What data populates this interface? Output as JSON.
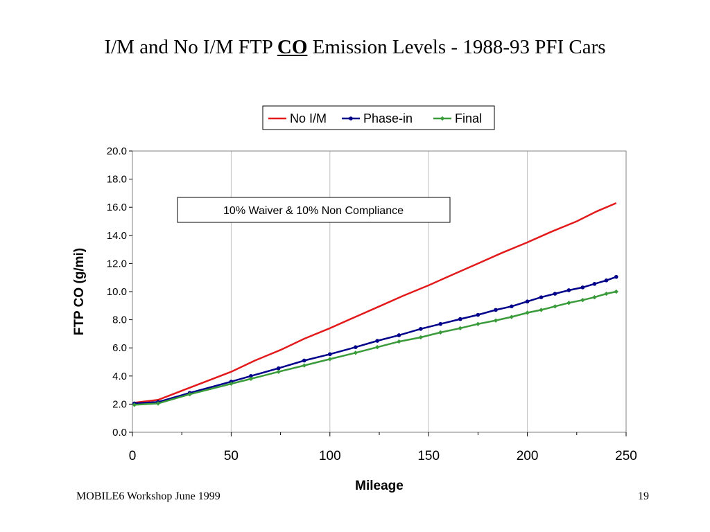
{
  "slide": {
    "title_part1": "I/M and No I/M FTP ",
    "title_emph": "CO",
    "title_part2": " Emission Levels - 1988-93 PFI Cars",
    "footer_left": "MOBILE6 Workshop June 1999",
    "page_number": "19"
  },
  "chart_data": {
    "type": "line",
    "xlabel": "Mileage",
    "ylabel": "FTP CO (g/mi)",
    "xlim": [
      0,
      250
    ],
    "ylim": [
      0,
      20
    ],
    "x_ticks": [
      0,
      50,
      100,
      150,
      200,
      250
    ],
    "y_ticks": [
      0,
      2,
      4,
      6,
      8,
      10,
      12,
      14,
      16,
      18,
      20
    ],
    "x_tick_labels": [
      "0",
      "50",
      "100",
      "150",
      "200",
      "250"
    ],
    "y_tick_labels": [
      "0.0",
      "2.0",
      "4.0",
      "6.0",
      "8.0",
      "10.0",
      "12.0",
      "14.0",
      "16.0",
      "18.0",
      "20.0"
    ],
    "grid": "vertical",
    "legend_position": "top",
    "annotation": "10% Waiver & 10% Non Compliance",
    "series": [
      {
        "name": "No I/M",
        "color": "#e31a1c",
        "marker": "none",
        "x": [
          1,
          13,
          25,
          37,
          50,
          62,
          75,
          87,
          100,
          112,
          125,
          137,
          150,
          162,
          175,
          187,
          200,
          212,
          225,
          235,
          245
        ],
        "y": [
          2.1,
          2.3,
          2.95,
          3.6,
          4.3,
          5.1,
          5.85,
          6.65,
          7.4,
          8.15,
          8.95,
          9.7,
          10.45,
          11.2,
          12.0,
          12.75,
          13.5,
          14.25,
          15.0,
          15.7,
          16.3
        ]
      },
      {
        "name": "Phase-in",
        "color": "#00008b",
        "marker": "circle",
        "x": [
          1,
          13,
          29,
          50,
          60,
          74,
          87,
          100,
          113,
          124,
          135,
          146,
          156,
          166,
          175,
          184,
          192,
          200,
          207,
          214,
          221,
          228,
          234,
          240,
          245
        ],
        "y": [
          2.05,
          2.15,
          2.8,
          3.6,
          4.0,
          4.55,
          5.1,
          5.55,
          6.05,
          6.5,
          6.9,
          7.35,
          7.7,
          8.05,
          8.35,
          8.7,
          8.95,
          9.3,
          9.6,
          9.85,
          10.1,
          10.3,
          10.55,
          10.8,
          11.05
        ]
      },
      {
        "name": "Final",
        "color": "#3a9b3a",
        "marker": "diamond",
        "x": [
          1,
          13,
          29,
          50,
          60,
          74,
          87,
          100,
          113,
          124,
          135,
          146,
          156,
          166,
          175,
          184,
          192,
          200,
          207,
          214,
          221,
          228,
          234,
          240,
          245
        ],
        "y": [
          1.95,
          2.05,
          2.7,
          3.45,
          3.8,
          4.3,
          4.75,
          5.2,
          5.65,
          6.05,
          6.45,
          6.75,
          7.1,
          7.4,
          7.7,
          7.95,
          8.2,
          8.5,
          8.7,
          8.95,
          9.2,
          9.4,
          9.6,
          9.85,
          10.0
        ]
      }
    ]
  }
}
